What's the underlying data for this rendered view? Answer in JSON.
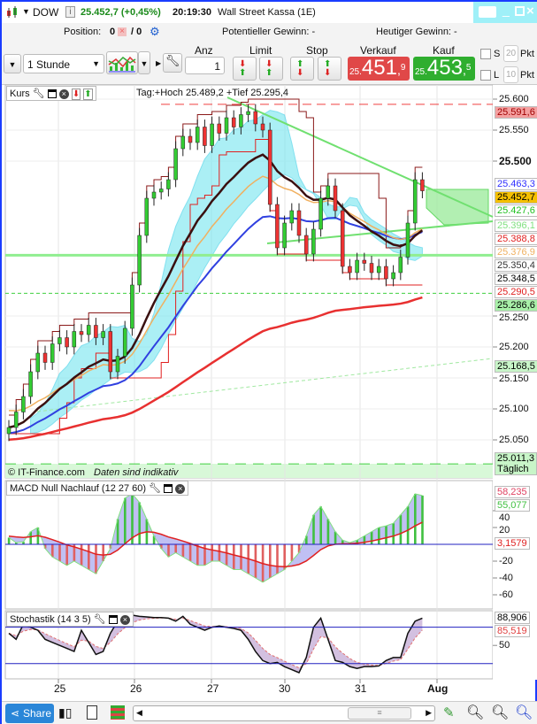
{
  "header": {
    "symbol": "DOW",
    "quote": "25.452,7 (+0,45%)",
    "time": "20:19:30",
    "instrument": "Wall Street Kassa (1E)"
  },
  "position_row": {
    "position_label": "Position:",
    "position_value": "0",
    "position_sep": "/ 0",
    "potential_gain": "Potentieller Gewinn: -",
    "todays_gain": "Heutiger Gewinn: -"
  },
  "toolbar": {
    "interval": "1 Stunde",
    "anz_label": "Anz",
    "anz_value": "1",
    "limit_label": "Limit",
    "stop_label": "Stop",
    "sell_label": "Verkauf",
    "buy_label": "Kauf",
    "sell_price": {
      "prefix": "25.",
      "main": "451",
      "sep": ",",
      "decimal": "9"
    },
    "buy_price": {
      "prefix": "25.",
      "main": "453",
      "sep": ",",
      "decimal": "5"
    },
    "s_label": "S",
    "s_value": "20",
    "l_label": "L",
    "l_value": "10",
    "pkt": "Pkt"
  },
  "colors": {
    "sell": "#e04848",
    "buy": "#2fae2f",
    "accent": "#1a3cff",
    "cloud": "#7fe8f0"
  },
  "price_panel": {
    "title": "Kurs",
    "info": "Tag:+Hoch 25.489,2 +Tief 25.295,4",
    "copyright": "© IT-Finance.com",
    "disclaimer": "Daten sind indikativ",
    "ticks": [
      {
        "v": 25600,
        "t": "25.600"
      },
      {
        "v": 25550,
        "t": "25.550"
      },
      {
        "v": 25500,
        "t": "25.500"
      },
      {
        "v": 25250,
        "t": "25.250"
      },
      {
        "v": 25200,
        "t": "25.200"
      },
      {
        "v": 25150,
        "t": "25.150"
      },
      {
        "v": 25100,
        "t": "25.100"
      },
      {
        "v": 25050,
        "t": "25.050"
      }
    ],
    "labels": [
      {
        "v": 25591.6,
        "t": "25.591,6",
        "bg": "#f4a0a0",
        "fg": "#a00000"
      },
      {
        "v": 25463.3,
        "t": "25.463,3",
        "bg": "#ffffff",
        "fg": "#3030ff"
      },
      {
        "v": 25452.7,
        "t": "25.452,7",
        "bg": "#f5c000",
        "fg": "#000000"
      },
      {
        "v": 25427.6,
        "t": "25.427,6",
        "bg": "#ffffff",
        "fg": "#20c020"
      },
      {
        "v": 25396.1,
        "t": "25.396,1",
        "bg": "#ffffff",
        "fg": "#80e080"
      },
      {
        "v": 25388.8,
        "t": "25.388,8",
        "bg": "#ffffff",
        "fg": "#e02020"
      },
      {
        "v": 25376.9,
        "t": "25.376,9",
        "bg": "#ffffff",
        "fg": "#f0b060"
      },
      {
        "v": 25350.4,
        "t": "25.350,4",
        "bg": "#ffffff",
        "fg": "#333333"
      },
      {
        "v": 25348.5,
        "t": "25.348,5",
        "bg": "#ffffff",
        "fg": "#000000"
      },
      {
        "v": 25290.5,
        "t": "25.290,5",
        "bg": "#ffffff",
        "fg": "#e02020"
      },
      {
        "v": 25286.6,
        "t": "25.286,6",
        "bg": "#a8f0a8",
        "fg": "#000000"
      },
      {
        "v": 25168.5,
        "t": "25.168,5",
        "bg": "#c8f5c8",
        "fg": "#000000"
      },
      {
        "v": 25011.3,
        "t": "25.011,3",
        "bg": "#c8f5c8",
        "fg": "#000000"
      }
    ],
    "daily_label": "Täglich"
  },
  "macd_panel": {
    "title": "MACD Null Nachlauf (12 27 60)",
    "ticks": [
      {
        "v": 40,
        "t": "40"
      },
      {
        "v": 20,
        "t": "20"
      },
      {
        "v": -20,
        "t": "-20"
      },
      {
        "v": -40,
        "t": "-40"
      },
      {
        "v": -60,
        "t": "-60"
      }
    ],
    "labels": [
      {
        "v": 62,
        "t": "58,235",
        "fg": "#e04060"
      },
      {
        "v": 51,
        "t": "55,077",
        "fg": "#40c040"
      },
      {
        "v": 3.1579,
        "t": "3,1579",
        "fg": "#e02020"
      }
    ]
  },
  "stoch_panel": {
    "title": "Stochastik (14 3 5)",
    "ticks": [
      {
        "v": 50,
        "t": "50"
      }
    ],
    "labels": [
      {
        "v": 97,
        "t": "88,906",
        "fg": "#000000"
      },
      {
        "v": 85.519,
        "t": "85,519",
        "fg": "#e04040"
      }
    ],
    "levels": [
      80,
      20
    ]
  },
  "x_axis": {
    "dates": [
      "25",
      "26",
      "27",
      "30",
      "31",
      "Aug"
    ]
  },
  "bottom": {
    "share_label": "Share"
  },
  "chart_data": {
    "type": "candlestick",
    "closes": [
      25070,
      25095,
      25120,
      25160,
      25190,
      25175,
      25205,
      25215,
      25200,
      25225,
      25220,
      25235,
      25215,
      25225,
      25160,
      25185,
      25230,
      25300,
      25380,
      25440,
      25450,
      25455,
      25470,
      25520,
      25540,
      25530,
      25555,
      25525,
      25560,
      25545,
      25570,
      25555,
      25575,
      25580,
      25560,
      25550,
      25430,
      25360,
      25400,
      25420,
      25380,
      25350,
      25390,
      25440,
      25460,
      25420,
      25330,
      25320,
      25340,
      25335,
      25320,
      25330,
      25310,
      25320,
      25345,
      25400,
      25470,
      25452
    ],
    "macd_histogram": [
      8,
      2,
      3,
      15,
      20,
      -5,
      -15,
      -20,
      -25,
      -20,
      -25,
      -30,
      -35,
      -20,
      -5,
      30,
      55,
      60,
      50,
      30,
      10,
      -5,
      -15,
      -10,
      -15,
      -20,
      -25,
      -25,
      -20,
      -20,
      -25,
      -30,
      -30,
      -35,
      -40,
      -45,
      -40,
      -35,
      -30,
      -20,
      -10,
      10,
      35,
      45,
      30,
      15,
      5,
      2,
      5,
      10,
      15,
      20,
      22,
      25,
      35,
      45,
      60,
      58
    ],
    "stochastic": [
      70,
      60,
      85,
      80,
      75,
      60,
      55,
      50,
      45,
      40,
      75,
      55,
      35,
      40,
      70,
      90,
      95,
      100,
      98,
      97,
      96,
      96,
      95,
      90,
      98,
      85,
      80,
      75,
      80,
      82,
      80,
      78,
      75,
      60,
      40,
      25,
      20,
      22,
      15,
      10,
      5,
      30,
      80,
      95,
      60,
      25,
      22,
      15,
      12,
      15,
      15,
      16,
      25,
      30,
      30,
      70,
      90,
      95
    ],
    "price_ylim": [
      25000,
      25620
    ],
    "macd_ylim": [
      -75,
      70
    ],
    "stoch_ylim": [
      0,
      100
    ],
    "grid": true
  }
}
